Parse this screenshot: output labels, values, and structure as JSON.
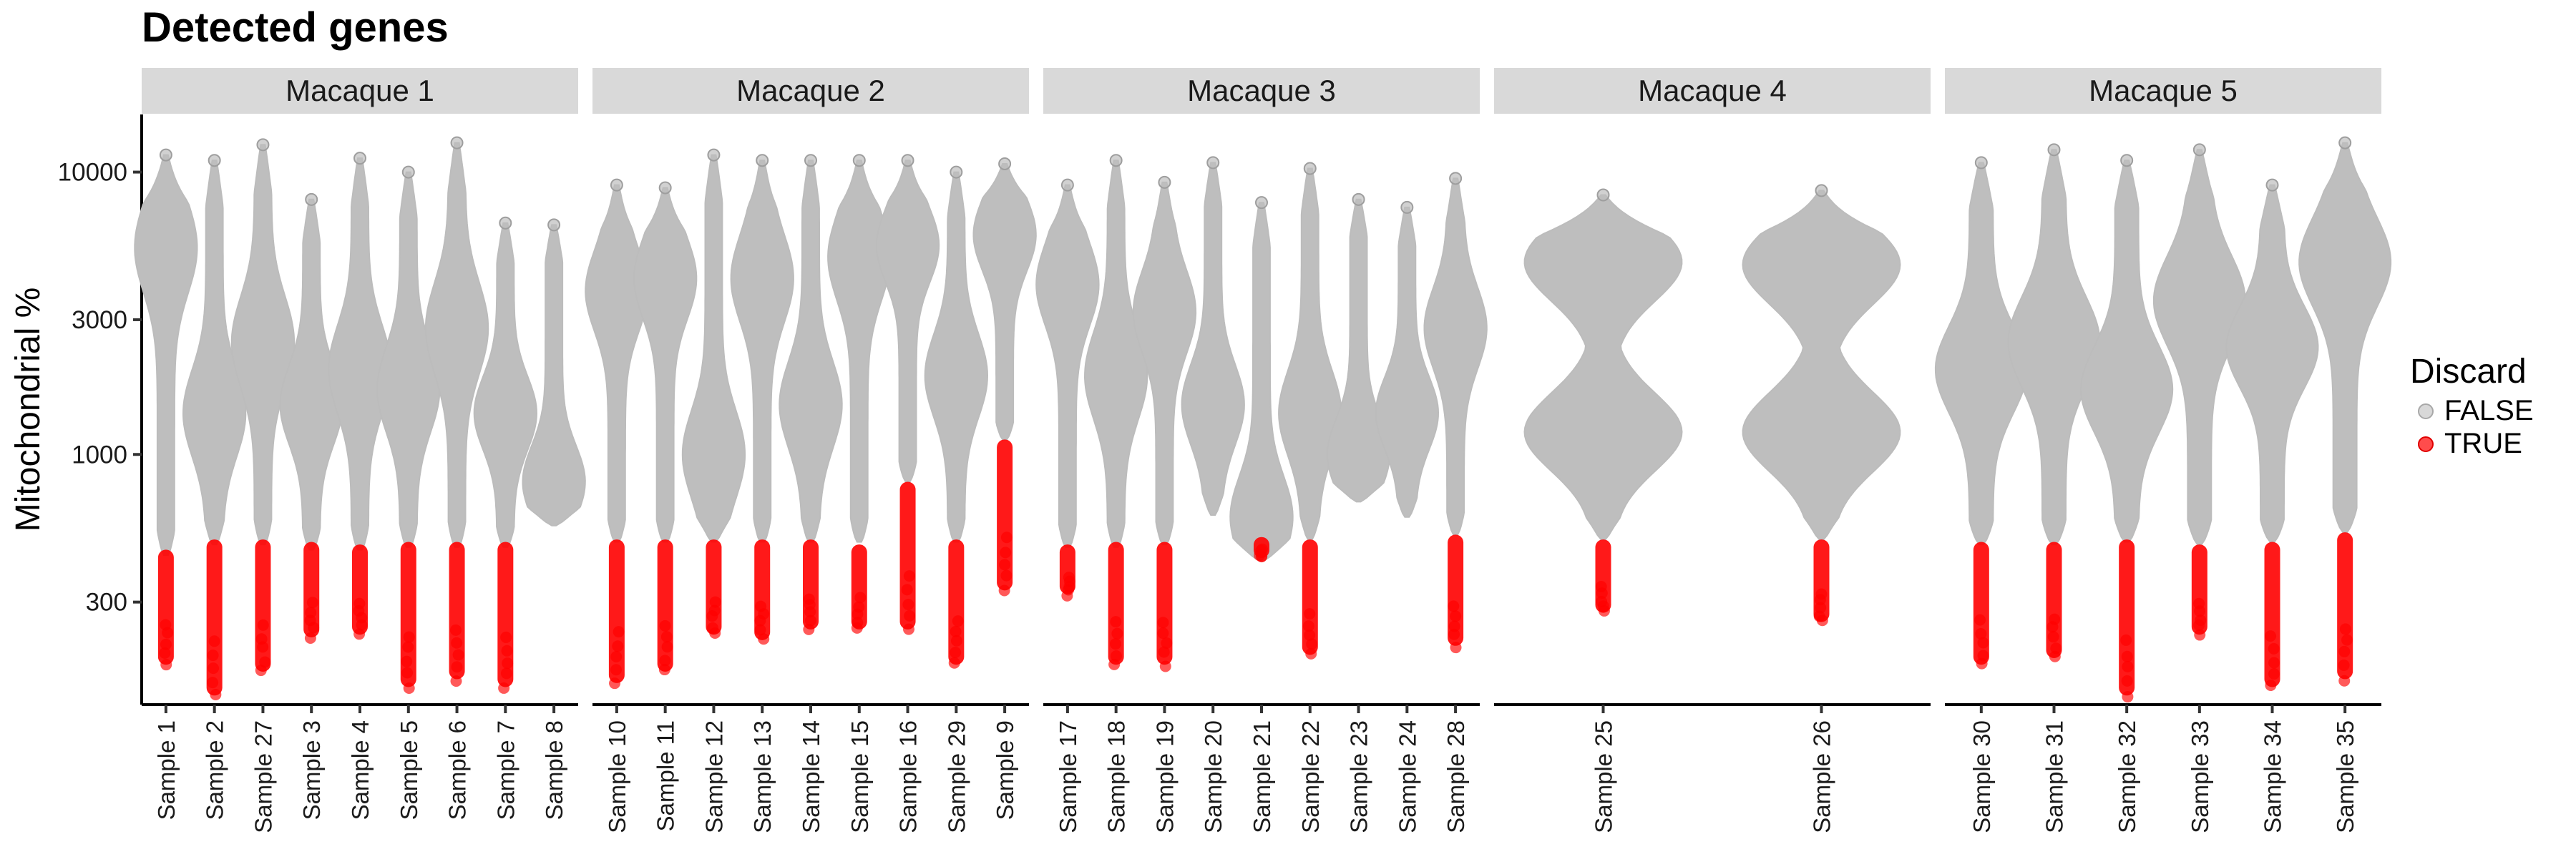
{
  "chart_data": {
    "type": "violin",
    "title": "Detected genes",
    "xlabel": "",
    "ylabel": "Mitochondrial %",
    "y_scale": "log10",
    "ylim": [
      130,
      16000
    ],
    "yticks": [
      {
        "value": 300,
        "label": "300"
      },
      {
        "value": 1000,
        "label": "1000"
      },
      {
        "value": 3000,
        "label": "3000"
      },
      {
        "value": 10000,
        "label": "10000"
      }
    ],
    "colors": {
      "FALSE": "#bebebe",
      "TRUE": "#ff0000",
      "strip": "#d9d9d9"
    },
    "legend": {
      "title": "Discard",
      "position": "right",
      "entries": [
        {
          "label": "FALSE",
          "color": "#bebebe"
        },
        {
          "label": "TRUE",
          "color": "#ff0000"
        }
      ]
    },
    "facets": [
      {
        "name": "Macaque 1",
        "samples": [
          {
            "label": "Sample 1",
            "min": 440,
            "max": 11500,
            "mode": 5400,
            "discard_min": 180,
            "discard_max": 460
          },
          {
            "label": "Sample 2",
            "min": 480,
            "max": 11000,
            "mode": 1400,
            "discard_min": 140,
            "discard_max": 500
          },
          {
            "label": "Sample 27",
            "min": 480,
            "max": 12500,
            "mode": 2500,
            "discard_min": 170,
            "discard_max": 500
          },
          {
            "label": "Sample 3",
            "min": 460,
            "max": 8000,
            "mode": 1500,
            "discard_min": 225,
            "discard_max": 490
          },
          {
            "label": "Sample 4",
            "min": 460,
            "max": 11200,
            "mode": 2000,
            "discard_min": 230,
            "discard_max": 480
          },
          {
            "label": "Sample 5",
            "min": 470,
            "max": 10000,
            "mode": 1700,
            "discard_min": 150,
            "discard_max": 490
          },
          {
            "label": "Sample 6",
            "min": 470,
            "max": 12700,
            "mode": 2800,
            "discard_min": 160,
            "discard_max": 490
          },
          {
            "label": "Sample 7",
            "min": 470,
            "max": 6600,
            "mode": 1400,
            "discard_min": 150,
            "discard_max": 490
          },
          {
            "label": "Sample 8",
            "min": 560,
            "max": 6500,
            "mode": 800,
            "discard_min": null,
            "discard_max": null
          }
        ]
      },
      {
        "name": "Macaque 2",
        "samples": [
          {
            "label": "Sample 10",
            "min": 490,
            "max": 9000,
            "mode": 3800,
            "discard_min": 155,
            "discard_max": 500
          },
          {
            "label": "Sample 11",
            "min": 490,
            "max": 8800,
            "mode": 4200,
            "discard_min": 170,
            "discard_max": 500
          },
          {
            "label": "Sample 12",
            "min": 490,
            "max": 11500,
            "mode": 1000,
            "discard_min": 230,
            "discard_max": 500
          },
          {
            "label": "Sample 13",
            "min": 490,
            "max": 11000,
            "mode": 4200,
            "discard_min": 220,
            "discard_max": 500
          },
          {
            "label": "Sample 14",
            "min": 490,
            "max": 11000,
            "mode": 1500,
            "discard_min": 240,
            "discard_max": 500
          },
          {
            "label": "Sample 15",
            "min": 490,
            "max": 11000,
            "mode": 5000,
            "discard_min": 240,
            "discard_max": 480
          },
          {
            "label": "Sample 16",
            "min": 800,
            "max": 11000,
            "mode": 5500,
            "discard_min": 240,
            "discard_max": 800
          },
          {
            "label": "Sample 29",
            "min": 490,
            "max": 10000,
            "mode": 1900,
            "discard_min": 180,
            "discard_max": 500
          },
          {
            "label": "Sample 9",
            "min": 1130,
            "max": 10700,
            "mode": 6000,
            "discard_min": 330,
            "discard_max": 1130
          }
        ]
      },
      {
        "name": "Macaque 3",
        "samples": [
          {
            "label": "Sample 17",
            "min": 470,
            "max": 9000,
            "mode": 4000,
            "discard_min": 320,
            "discard_max": 480
          },
          {
            "label": "Sample 18",
            "min": 470,
            "max": 11000,
            "mode": 1900,
            "discard_min": 180,
            "discard_max": 490
          },
          {
            "label": "Sample 19",
            "min": 480,
            "max": 9200,
            "mode": 3200,
            "discard_min": 180,
            "discard_max": 490
          },
          {
            "label": "Sample 20",
            "min": 610,
            "max": 10800,
            "mode": 1500,
            "discard_min": null,
            "discard_max": null
          },
          {
            "label": "Sample 21",
            "min": 420,
            "max": 7800,
            "mode": 600,
            "discard_min": 430,
            "discard_max": 510
          },
          {
            "label": "Sample 22",
            "min": 500,
            "max": 10300,
            "mode": 1400,
            "discard_min": 195,
            "discard_max": 500
          },
          {
            "label": "Sample 23",
            "min": 680,
            "max": 8000,
            "mode": 1000,
            "discard_min": null,
            "discard_max": null
          },
          {
            "label": "Sample 24",
            "min": 600,
            "max": 7500,
            "mode": 1400,
            "discard_min": null,
            "discard_max": null
          },
          {
            "label": "Sample 28",
            "min": 520,
            "max": 9500,
            "mode": 2800,
            "discard_min": 210,
            "discard_max": 520
          }
        ]
      },
      {
        "name": "Macaque 4",
        "samples": [
          {
            "label": "Sample 25",
            "min": 500,
            "max": 8300,
            "mode": 4800,
            "discard_min": 275,
            "discard_max": 500
          },
          {
            "label": "Sample 26",
            "min": 500,
            "max": 8600,
            "mode": 4700,
            "discard_min": 255,
            "discard_max": 500
          }
        ]
      },
      {
        "name": "Macaque 5",
        "samples": [
          {
            "label": "Sample 30",
            "min": 480,
            "max": 10800,
            "mode": 2000,
            "discard_min": 180,
            "discard_max": 490
          },
          {
            "label": "Sample 31",
            "min": 480,
            "max": 12000,
            "mode": 2500,
            "discard_min": 190,
            "discard_max": 490
          },
          {
            "label": "Sample 32",
            "min": 490,
            "max": 11000,
            "mode": 1700,
            "discard_min": 140,
            "discard_max": 500
          },
          {
            "label": "Sample 33",
            "min": 480,
            "max": 12000,
            "mode": 3500,
            "discard_min": 230,
            "discard_max": 480
          },
          {
            "label": "Sample 34",
            "min": 490,
            "max": 9000,
            "mode": 2400,
            "discard_min": 150,
            "discard_max": 490
          },
          {
            "label": "Sample 35",
            "min": 530,
            "max": 12700,
            "mode": 4800,
            "discard_min": 160,
            "discard_max": 530
          }
        ]
      }
    ]
  }
}
